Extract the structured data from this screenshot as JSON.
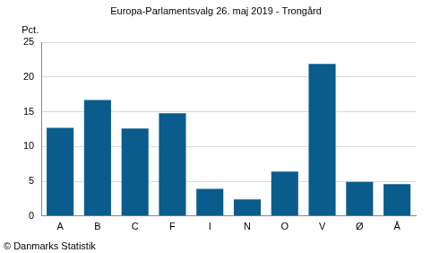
{
  "chart_data": {
    "type": "bar",
    "title": "Europa-Parlamentsvalg 26. maj 2019 - Trongård",
    "y_label": "Pct.",
    "annotation": "© Danmarks Statistik",
    "categories": [
      "A",
      "B",
      "C",
      "F",
      "I",
      "N",
      "O",
      "V",
      "Ø",
      "Å"
    ],
    "values": [
      12.7,
      16.7,
      12.6,
      14.8,
      3.9,
      2.4,
      6.4,
      21.9,
      4.9,
      4.6
    ],
    "color": "#0a5c8c",
    "ylim": [
      0,
      25
    ],
    "yticks": [
      0,
      5,
      10,
      15,
      20,
      25
    ],
    "grid": true
  }
}
